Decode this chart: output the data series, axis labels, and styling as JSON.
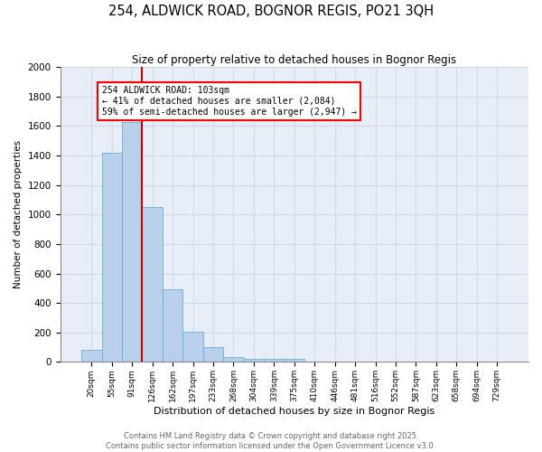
{
  "title": "254, ALDWICK ROAD, BOGNOR REGIS, PO21 3QH",
  "subtitle": "Size of property relative to detached houses in Bognor Regis",
  "xlabel": "Distribution of detached houses by size in Bognor Regis",
  "ylabel": "Number of detached properties",
  "categories": [
    "20sqm",
    "55sqm",
    "91sqm",
    "126sqm",
    "162sqm",
    "197sqm",
    "233sqm",
    "268sqm",
    "304sqm",
    "339sqm",
    "375sqm",
    "410sqm",
    "446sqm",
    "481sqm",
    "516sqm",
    "552sqm",
    "587sqm",
    "623sqm",
    "658sqm",
    "694sqm",
    "729sqm"
  ],
  "values": [
    80,
    1420,
    1630,
    1050,
    490,
    205,
    100,
    35,
    20,
    18,
    18,
    0,
    0,
    0,
    0,
    0,
    0,
    0,
    0,
    0,
    0
  ],
  "bar_color": "#b8d0ea",
  "bar_edge_color": "#6aaed6",
  "grid_color": "#d0d8e8",
  "bg_color": "#e8eef8",
  "annotation_text": "254 ALDWICK ROAD: 103sqm\n← 41% of detached houses are smaller (2,084)\n59% of semi-detached houses are larger (2,947) →",
  "vline_color": "#cc0000",
  "vline_x_idx": 2.5,
  "ylim": [
    0,
    2000
  ],
  "yticks": [
    0,
    200,
    400,
    600,
    800,
    1000,
    1200,
    1400,
    1600,
    1800,
    2000
  ],
  "footer_line1": "Contains HM Land Registry data © Crown copyright and database right 2025.",
  "footer_line2": "Contains public sector information licensed under the Open Government Licence v3.0."
}
